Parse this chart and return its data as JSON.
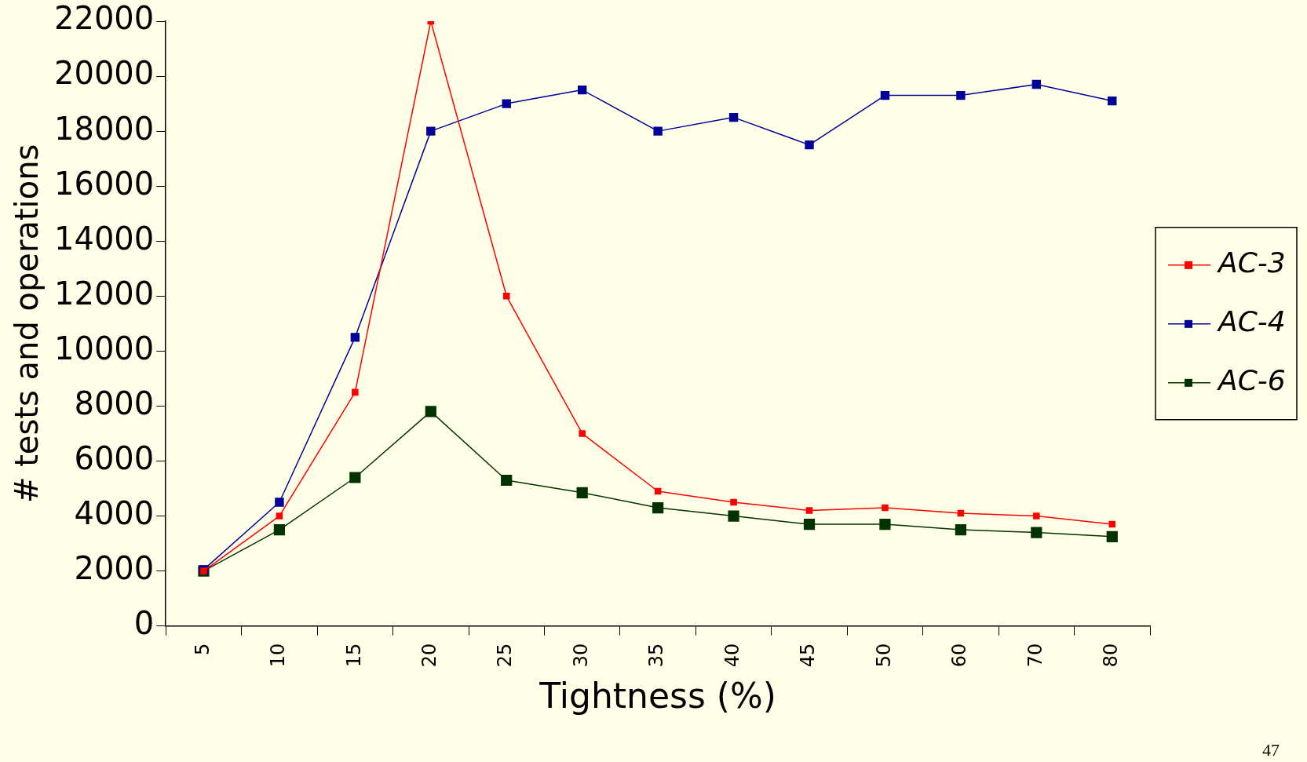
{
  "chart_data": {
    "type": "line",
    "xlabel": "Tightness (%)",
    "ylabel": "# tests and operations",
    "categories": [
      "5",
      "10",
      "15",
      "20",
      "25",
      "30",
      "35",
      "40",
      "45",
      "50",
      "60",
      "70",
      "80"
    ],
    "series": [
      {
        "name": "AC-3",
        "color": "#ff0000",
        "values": [
          2000,
          4000,
          8500,
          22000,
          12000,
          7000,
          4900,
          4500,
          4200,
          4300,
          4100,
          4000,
          3700
        ]
      },
      {
        "name": "AC-4",
        "color": "#000099",
        "values": [
          2050,
          4500,
          10500,
          18000,
          19000,
          19500,
          18000,
          18500,
          17500,
          19300,
          19300,
          19700,
          19100
        ]
      },
      {
        "name": "AC-6",
        "color": "#003300",
        "values": [
          2000,
          3500,
          5400,
          7800,
          5300,
          4850,
          4300,
          4000,
          3700,
          3700,
          3500,
          3400,
          3250
        ]
      }
    ],
    "ylim": [
      0,
      22000
    ],
    "yticks": [
      0,
      2000,
      4000,
      6000,
      8000,
      10000,
      12000,
      14000,
      16000,
      18000,
      20000,
      22000
    ],
    "grid": false,
    "legend": "right",
    "marker": "square",
    "line_style": "solid",
    "annotations": [
      "47"
    ]
  }
}
